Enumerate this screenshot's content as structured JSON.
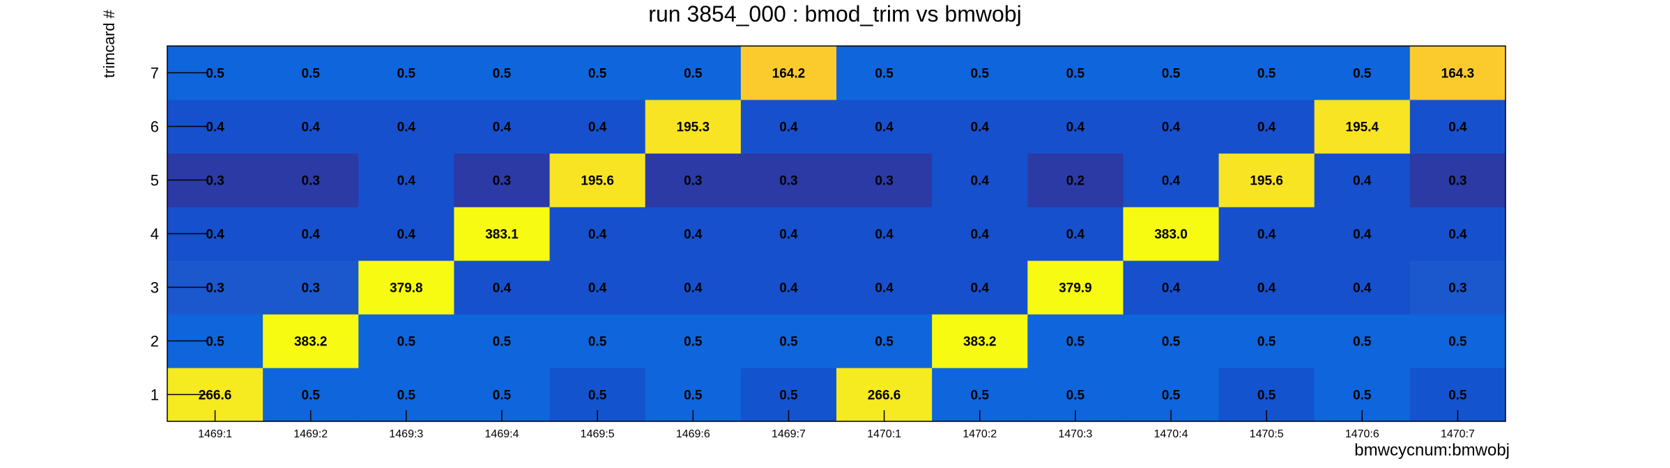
{
  "chart_data": {
    "type": "heatmap",
    "title": "run 3854_000 : bmod_trim vs bmwobj",
    "xlabel": "bmwcycnum:bmwobj",
    "ylabel": "trimcard #",
    "x_categories": [
      "1469:1",
      "1469:2",
      "1469:3",
      "1469:4",
      "1469:5",
      "1469:6",
      "1469:7",
      "1470:1",
      "1470:2",
      "1470:3",
      "1470:4",
      "1470:5",
      "1470:6",
      "1470:7"
    ],
    "y_categories": [
      "1",
      "2",
      "3",
      "4",
      "5",
      "6",
      "7"
    ],
    "values": [
      [
        266.6,
        0.5,
        0.5,
        0.5,
        0.5,
        0.5,
        0.5,
        266.6,
        0.5,
        0.5,
        0.5,
        0.5,
        0.5,
        0.5
      ],
      [
        0.5,
        383.2,
        0.5,
        0.5,
        0.5,
        0.5,
        0.5,
        0.5,
        383.2,
        0.5,
        0.5,
        0.5,
        0.5,
        0.5
      ],
      [
        0.3,
        0.3,
        379.8,
        0.4,
        0.4,
        0.4,
        0.4,
        0.4,
        0.4,
        379.9,
        0.4,
        0.4,
        0.4,
        0.3
      ],
      [
        0.4,
        0.4,
        0.4,
        383.1,
        0.4,
        0.4,
        0.4,
        0.4,
        0.4,
        0.4,
        383.0,
        0.4,
        0.4,
        0.4
      ],
      [
        0.3,
        0.3,
        0.4,
        0.3,
        195.6,
        0.3,
        0.3,
        0.3,
        0.4,
        0.2,
        0.4,
        195.6,
        0.4,
        0.3
      ],
      [
        0.4,
        0.4,
        0.4,
        0.4,
        0.4,
        195.3,
        0.4,
        0.4,
        0.4,
        0.4,
        0.4,
        0.4,
        195.4,
        0.4
      ],
      [
        0.5,
        0.5,
        0.5,
        0.5,
        0.5,
        0.5,
        164.2,
        0.5,
        0.5,
        0.5,
        0.5,
        0.5,
        0.5,
        164.3
      ]
    ],
    "colors": {
      "large_366_plus": "#f7fa11",
      "large_260_plus": "#f6ea20",
      "large_190_plus": "#f9e424",
      "large_160_plus": "#fbcb2e",
      "small_0_5_a": "#0f65db",
      "small_0_5_b": "#1453ce",
      "small_0_4": "#1650cd",
      "small_0_3_a": "#1b57cd",
      "small_0_3_b": "#2b3aa4",
      "small_0_2": "#2b3aa4"
    },
    "grid": false,
    "legend": "none"
  }
}
